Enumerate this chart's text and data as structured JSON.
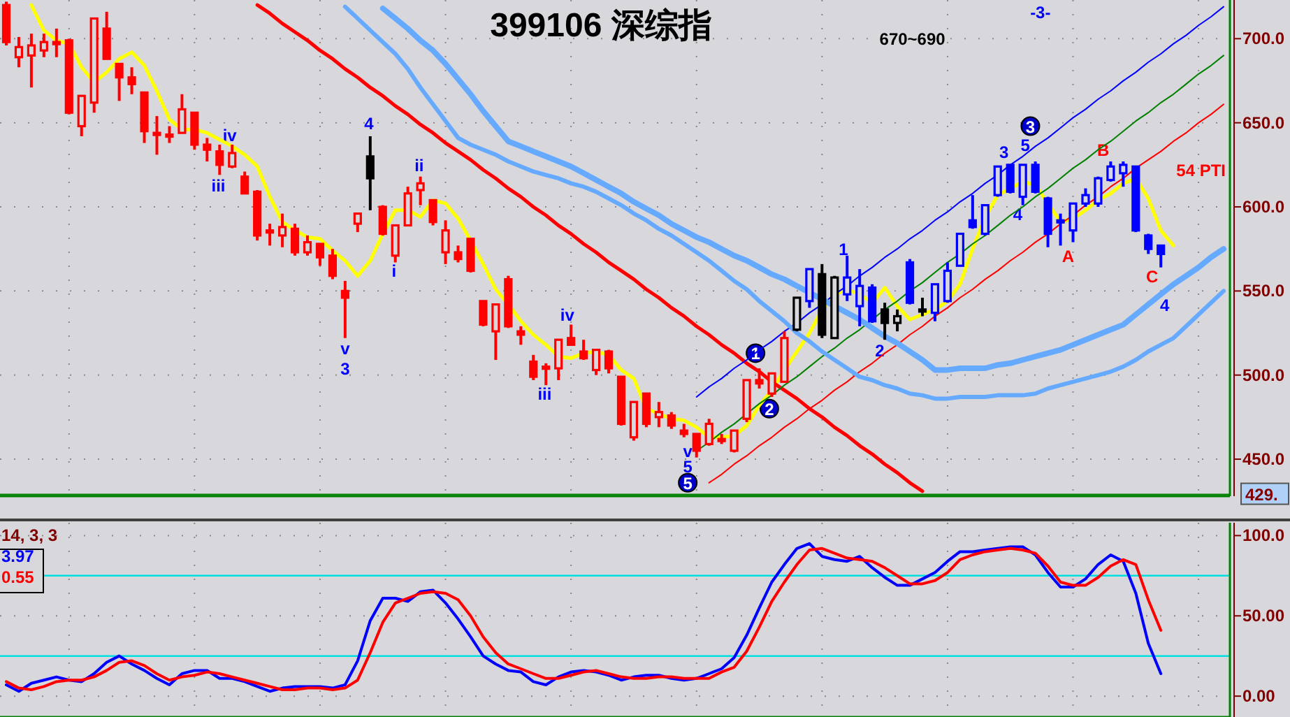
{
  "chart_data": [
    {
      "type": "candlestick",
      "title": "399106 深综指",
      "tick_labels": "y",
      "grid": true,
      "categories": [
        null,
        null,
        null,
        null,
        null,
        null,
        null,
        null,
        null,
        null,
        null,
        null,
        null,
        null,
        null,
        null,
        null,
        null,
        null,
        null,
        null,
        null,
        null,
        null,
        null,
        null,
        null,
        null,
        null,
        null,
        null,
        null,
        null,
        null,
        null,
        null,
        null,
        null,
        null,
        null,
        null,
        null,
        null,
        null,
        null,
        null,
        null,
        null,
        null,
        null,
        null,
        null,
        null,
        null,
        null,
        null,
        null,
        null,
        null,
        null,
        null,
        null,
        null,
        null,
        null,
        null,
        null,
        null,
        null,
        null,
        null,
        null,
        null,
        null,
        null,
        null,
        null,
        null,
        null,
        null,
        null,
        null,
        null,
        null,
        null,
        null,
        null,
        null,
        null,
        null,
        null,
        null,
        null,
        null,
        null,
        null,
        null,
        null
      ],
      "ohlc": [
        [
          720,
          722,
          696,
          698
        ],
        [
          689,
          701,
          683,
          695
        ],
        [
          690,
          703,
          671,
          696
        ],
        [
          693,
          703,
          689,
          698
        ],
        [
          698,
          706,
          689,
          697
        ],
        [
          699,
          700,
          655,
          656
        ],
        [
          648,
          666,
          642,
          666
        ],
        [
          662,
          712,
          656,
          712
        ],
        [
          706,
          716,
          688,
          688
        ],
        [
          685,
          685,
          663,
          677
        ],
        [
          677,
          683,
          667,
          673
        ],
        [
          668,
          668,
          638,
          645
        ],
        [
          644,
          654,
          631,
          643
        ],
        [
          643,
          648,
          638,
          642
        ],
        [
          644,
          667,
          644,
          658
        ],
        [
          656,
          656,
          634,
          637
        ],
        [
          637,
          641,
          627,
          634
        ],
        [
          633,
          637,
          619,
          625
        ],
        [
          624,
          637,
          623,
          632
        ],
        [
          618,
          621,
          608,
          608
        ],
        [
          609,
          610,
          580,
          583
        ],
        [
          586,
          590,
          577,
          585
        ],
        [
          583,
          596,
          576,
          588
        ],
        [
          587,
          590,
          571,
          573
        ],
        [
          573,
          583,
          571,
          579
        ],
        [
          578,
          578,
          565,
          570
        ],
        [
          571,
          575,
          557,
          559
        ],
        [
          550,
          556,
          522,
          546
        ],
        [
          590,
          596,
          585,
          596
        ],
        [
          630,
          642,
          598,
          617
        ],
        [
          600,
          601,
          583,
          584
        ],
        [
          571,
          589,
          567,
          589
        ],
        [
          589,
          612,
          589,
          608
        ],
        [
          610,
          618,
          601,
          614
        ],
        [
          604,
          604,
          589,
          591
        ],
        [
          573,
          592,
          566,
          586
        ],
        [
          573,
          577,
          567,
          569
        ],
        [
          581,
          581,
          561,
          562
        ],
        [
          544,
          544,
          529,
          530
        ],
        [
          526,
          542,
          509,
          542
        ],
        [
          557,
          559,
          528,
          529
        ],
        [
          526,
          529,
          518,
          524
        ],
        [
          508,
          512,
          497,
          499
        ],
        [
          505,
          507,
          494,
          504
        ],
        [
          504,
          521,
          497,
          521
        ],
        [
          522,
          530,
          518,
          518
        ],
        [
          514,
          521,
          509,
          510
        ],
        [
          503,
          515,
          500,
          515
        ],
        [
          514,
          515,
          501,
          504
        ],
        [
          499,
          499,
          470,
          471
        ],
        [
          463,
          484,
          461,
          484
        ],
        [
          489,
          489,
          469,
          471
        ],
        [
          475,
          484,
          469,
          478
        ],
        [
          476,
          478,
          468,
          470
        ],
        [
          467,
          471,
          463,
          465
        ],
        [
          465,
          465,
          451,
          455
        ],
        [
          459,
          474,
          458,
          471
        ],
        [
          462,
          465,
          459,
          461
        ],
        [
          455,
          467,
          454,
          467
        ],
        [
          474,
          497,
          472,
          497
        ],
        [
          497,
          504,
          492,
          495
        ],
        [
          489,
          501,
          487,
          501
        ],
        [
          496,
          526,
          496,
          522
        ],
        [
          527,
          546,
          526,
          546
        ],
        [
          544,
          563,
          540,
          563
        ],
        [
          560,
          566,
          522,
          524
        ],
        [
          522,
          559,
          522,
          558
        ],
        [
          548,
          571,
          544,
          558
        ],
        [
          541,
          563,
          529,
          553
        ],
        [
          552,
          554,
          531,
          532
        ],
        [
          539,
          543,
          521,
          531
        ],
        [
          531,
          539,
          526,
          535
        ],
        [
          567,
          569,
          542,
          543
        ],
        [
          539,
          546,
          535,
          538
        ],
        [
          537,
          554,
          532,
          554
        ],
        [
          544,
          567,
          543,
          562
        ],
        [
          565,
          584,
          565,
          584
        ],
        [
          592,
          607,
          587,
          588
        ],
        [
          584,
          601,
          583,
          601
        ],
        [
          607,
          624,
          606,
          624
        ],
        [
          625,
          625,
          608,
          609
        ],
        [
          606,
          625,
          601,
          625
        ],
        [
          625,
          627,
          608,
          609
        ],
        [
          605,
          606,
          576,
          584
        ],
        [
          592,
          596,
          577,
          591
        ],
        [
          586,
          602,
          579,
          602
        ],
        [
          602,
          611,
          600,
          607
        ],
        [
          602,
          618,
          600,
          617
        ],
        [
          616,
          627,
          615,
          624
        ],
        [
          620,
          627,
          612,
          625
        ],
        [
          624,
          624,
          585,
          586
        ],
        [
          583,
          584,
          572,
          575
        ],
        [
          577,
          577,
          564,
          572
        ],
        null,
        null,
        null,
        null,
        null
      ],
      "colors": [
        "#ff0000",
        "#ff0000",
        "#ff0000",
        "#ff0000",
        "#ff0000",
        "#ff0000",
        "#ff0000",
        "#ff0000",
        "#ff0000",
        "#ff0000",
        "#ff0000",
        "#ff0000",
        "#ff0000",
        "#ff0000",
        "#ff0000",
        "#ff0000",
        "#ff0000",
        "#ff0000",
        "#ff0000",
        "#ff0000",
        "#ff0000",
        "#ff0000",
        "#ff0000",
        "#ff0000",
        "#ff0000",
        "#ff0000",
        "#ff0000",
        "#ff0000",
        "#ff0000",
        "#000000",
        "#ff0000",
        "#ff0000",
        "#ff0000",
        "#ff0000",
        "#ff0000",
        "#ff0000",
        "#ff0000",
        "#ff0000",
        "#ff0000",
        "#ff0000",
        "#ff0000",
        "#ff0000",
        "#ff0000",
        "#ff0000",
        "#ff0000",
        "#ff0000",
        "#ff0000",
        "#ff0000",
        "#ff0000",
        "#ff0000",
        "#ff0000",
        "#ff0000",
        "#ff0000",
        "#ff0000",
        "#ff0000",
        "#ff0000",
        "#ff0000",
        "#ff0000",
        "#ff0000",
        "#ff0000",
        "#ff0000",
        "#ff0000",
        "#ff0000",
        "#000000",
        "#0000ff",
        "#000000",
        "#000000",
        "#0000ff",
        "#0000ff",
        "#0000ff",
        "#000000",
        "#000000",
        "#0000ff",
        "#000000",
        "#0000ff",
        "#0000ff",
        "#0000ff",
        "#0000ff",
        "#0000ff",
        "#0000ff",
        "#0000ff",
        "#0000ff",
        "#0000ff",
        "#0000ff",
        "#0000ff",
        "#0000ff",
        "#0000ff",
        "#0000ff",
        "#0000ff",
        "#0000ff",
        "#0000ff",
        "#0000ff",
        "#0000ff",
        null,
        null,
        null,
        null,
        null
      ],
      "series": [
        {
          "type": "line",
          "color": "#ffff00",
          "values": [
            null,
            null,
            720,
            705,
            699,
            697,
            683,
            674,
            680,
            688,
            692,
            684,
            669,
            652,
            646,
            646,
            644,
            640,
            636,
            631,
            624,
            606,
            591,
            586,
            582,
            581,
            574,
            568,
            559,
            568,
            584,
            598,
            598,
            594,
            604,
            602,
            593,
            580,
            566,
            551,
            542,
            532,
            524,
            518,
            511,
            510,
            513,
            514,
            512,
            503,
            498,
            480,
            477,
            474,
            473,
            469,
            463,
            463,
            464,
            470,
            482,
            491,
            503,
            514,
            525,
            539,
            548,
            551,
            548,
            543,
            552,
            541,
            533,
            536,
            539,
            544,
            554,
            575,
            594,
            607,
            611,
            615,
            613,
            602,
            591,
            593,
            598,
            604,
            608,
            614,
            617,
            605,
            586,
            577,
            null,
            null,
            null,
            null
          ]
        },
        {
          "type": "line",
          "color": "#ff0000",
          "values": [
            null,
            null,
            null,
            null,
            null,
            null,
            null,
            null,
            null,
            null,
            null,
            null,
            null,
            null,
            null,
            null,
            null,
            null,
            null,
            null,
            720,
            715,
            709,
            704,
            699,
            693,
            688,
            682,
            677,
            671,
            666,
            660,
            655,
            649,
            644,
            638,
            633,
            628,
            622,
            617,
            611,
            606,
            600,
            595,
            589,
            584,
            578,
            573,
            567,
            562,
            557,
            551,
            546,
            540,
            535,
            529,
            524,
            518,
            513,
            507,
            502,
            496,
            491,
            486,
            480,
            475,
            469,
            464,
            458,
            453,
            447,
            442,
            436,
            431,
            null,
            null,
            null,
            null,
            null,
            null,
            null,
            null,
            null,
            null,
            null,
            null,
            null,
            null,
            null,
            null,
            null,
            null,
            null,
            null,
            null,
            null,
            null,
            null
          ]
        },
        {
          "type": "line",
          "color": "#0000ff",
          "values": [
            null,
            null,
            null,
            null,
            null,
            null,
            null,
            null,
            null,
            null,
            null,
            null,
            null,
            null,
            null,
            null,
            null,
            null,
            null,
            null,
            null,
            null,
            null,
            null,
            null,
            null,
            null,
            null,
            null,
            null,
            null,
            null,
            null,
            null,
            null,
            null,
            null,
            null,
            null,
            null,
            null,
            null,
            null,
            null,
            null,
            null,
            null,
            null,
            null,
            null,
            null,
            null,
            null,
            null,
            null,
            487,
            493,
            498,
            504,
            509,
            515,
            520,
            526,
            531,
            537,
            542,
            548,
            553,
            559,
            564,
            570,
            575,
            581,
            586,
            592,
            597,
            603,
            608,
            614,
            619,
            625,
            630,
            636,
            641,
            647,
            653,
            658,
            664,
            669,
            675,
            680,
            686,
            691,
            697,
            702,
            708,
            713,
            719
          ]
        },
        {
          "type": "line",
          "color": "#008000",
          "values": [
            null,
            null,
            null,
            null,
            null,
            null,
            null,
            null,
            null,
            null,
            null,
            null,
            null,
            null,
            null,
            null,
            null,
            null,
            null,
            null,
            null,
            null,
            null,
            null,
            null,
            null,
            null,
            null,
            null,
            null,
            null,
            null,
            null,
            null,
            null,
            null,
            null,
            null,
            null,
            null,
            null,
            null,
            null,
            null,
            null,
            null,
            null,
            null,
            null,
            null,
            null,
            null,
            null,
            null,
            null,
            455,
            460,
            466,
            471,
            477,
            483,
            488,
            494,
            499,
            505,
            511,
            516,
            522,
            527,
            533,
            539,
            544,
            550,
            555,
            561,
            567,
            572,
            578,
            583,
            589,
            595,
            600,
            606,
            611,
            617,
            623,
            628,
            634,
            639,
            645,
            651,
            656,
            662,
            667,
            673,
            679,
            684,
            690
          ]
        },
        {
          "type": "line",
          "color": "#ff0000",
          "values": [
            null,
            null,
            null,
            null,
            null,
            null,
            null,
            null,
            null,
            null,
            null,
            null,
            null,
            null,
            null,
            null,
            null,
            null,
            null,
            null,
            null,
            null,
            null,
            null,
            null,
            null,
            null,
            null,
            null,
            null,
            null,
            null,
            null,
            null,
            null,
            null,
            null,
            null,
            null,
            null,
            null,
            null,
            null,
            null,
            null,
            null,
            null,
            null,
            null,
            null,
            null,
            null,
            null,
            null,
            null,
            null,
            436,
            441,
            447,
            452,
            458,
            463,
            469,
            474,
            480,
            485,
            491,
            496,
            502,
            507,
            513,
            518,
            524,
            529,
            535,
            540,
            546,
            551,
            557,
            562,
            568,
            573,
            579,
            584,
            590,
            595,
            601,
            606,
            612,
            617,
            623,
            628,
            633,
            639,
            644,
            650,
            655,
            661
          ]
        },
        {
          "type": "line",
          "color": "#66aaff",
          "values": [
            null,
            null,
            null,
            null,
            null,
            null,
            null,
            null,
            null,
            null,
            null,
            null,
            null,
            null,
            null,
            null,
            null,
            null,
            null,
            null,
            null,
            null,
            null,
            null,
            null,
            null,
            null,
            null,
            null,
            null,
            718,
            712,
            706,
            699,
            693,
            685,
            676,
            667,
            657,
            648,
            639,
            636,
            633,
            630,
            627,
            624,
            620,
            616,
            612,
            608,
            603,
            599,
            595,
            590,
            586,
            582,
            579,
            575,
            571,
            568,
            564,
            560,
            557,
            553,
            549,
            545,
            541,
            537,
            533,
            528,
            523,
            519,
            514,
            509,
            503,
            503,
            504,
            504,
            504,
            506,
            507,
            509,
            511,
            513,
            515,
            518,
            521,
            524,
            527,
            530,
            536,
            542,
            548,
            554,
            559,
            564,
            570,
            575
          ]
        },
        {
          "type": "line",
          "color": "#66aaff",
          "values": [
            null,
            null,
            null,
            null,
            null,
            null,
            null,
            null,
            null,
            null,
            null,
            null,
            null,
            null,
            null,
            null,
            null,
            null,
            null,
            null,
            null,
            null,
            null,
            null,
            null,
            null,
            null,
            719,
            712,
            705,
            698,
            691,
            682,
            671,
            661,
            651,
            641,
            637,
            634,
            631,
            627,
            624,
            621,
            619,
            617,
            614,
            612,
            609,
            605,
            601,
            596,
            592,
            587,
            583,
            578,
            573,
            568,
            562,
            556,
            551,
            544,
            538,
            532,
            525,
            520,
            514,
            509,
            504,
            499,
            497,
            494,
            492,
            489,
            488,
            486,
            486,
            487,
            487,
            487,
            488,
            488,
            488,
            489,
            492,
            494,
            496,
            498,
            500,
            502,
            505,
            509,
            514,
            518,
            522,
            529,
            536,
            543,
            550
          ]
        }
      ],
      "ylim": [
        428,
        723
      ],
      "yticks": [
        {
          "value": 450,
          "label": "450.0"
        },
        {
          "value": 500,
          "label": "500.0"
        },
        {
          "value": 550,
          "label": "550.0"
        },
        {
          "value": 600,
          "label": "600.0"
        },
        {
          "value": 650,
          "label": "650.0"
        },
        {
          "value": 700,
          "label": "700.0"
        }
      ],
      "ref_lines": [
        {
          "axis": "y",
          "value": 429,
          "label": "429.",
          "color": "#008000"
        }
      ],
      "annotations": [
        "4",
        "ii",
        "i",
        "iii",
        "iv",
        "v",
        "3",
        "iv",
        "iii",
        "v",
        "5",
        "5",
        "1",
        "2",
        "1",
        "2",
        "3",
        "5",
        "3",
        "4",
        "A",
        "B",
        "C",
        "4",
        "54 PTI",
        "670~690",
        "-3-"
      ]
    },
    {
      "type": "line",
      "tick_labels": "y",
      "grid": true,
      "categories": [
        null,
        null,
        null,
        null,
        null,
        null,
        null,
        null,
        null,
        null,
        null,
        null,
        null,
        null,
        null,
        null,
        null,
        null,
        null,
        null,
        null,
        null,
        null,
        null,
        null,
        null,
        null,
        null,
        null,
        null,
        null,
        null,
        null,
        null,
        null,
        null,
        null,
        null,
        null,
        null,
        null,
        null,
        null,
        null,
        null,
        null,
        null,
        null,
        null,
        null,
        null,
        null,
        null,
        null,
        null,
        null,
        null,
        null,
        null,
        null,
        null,
        null,
        null,
        null,
        null,
        null,
        null,
        null,
        null,
        null,
        null,
        null,
        null,
        null,
        null,
        null,
        null,
        null,
        null,
        null,
        null,
        null,
        null,
        null,
        null,
        null,
        null,
        null,
        null,
        null,
        null,
        null,
        null,
        null,
        null,
        null,
        null,
        null
      ],
      "series": [
        {
          "color": "#0000ff",
          "values": [
            7,
            3,
            8,
            10,
            12,
            10,
            9,
            14,
            21,
            25,
            20,
            16,
            11,
            7,
            14,
            16,
            16,
            11,
            11,
            9,
            6,
            3,
            5,
            6,
            6,
            6,
            5,
            7,
            22,
            47,
            61,
            61,
            59,
            65,
            66,
            58,
            48,
            37,
            25,
            20,
            16,
            15,
            9,
            7,
            12,
            15,
            16,
            15,
            13,
            10,
            12,
            13,
            13,
            11,
            10,
            11,
            14,
            17,
            24,
            38,
            55,
            71,
            82,
            92,
            95,
            87,
            85,
            84,
            87,
            80,
            74,
            69,
            69,
            73,
            77,
            84,
            90,
            90,
            91,
            92,
            93,
            93,
            88,
            77,
            68,
            68,
            73,
            82,
            88,
            84,
            64,
            33,
            14,
            null,
            null,
            null,
            null,
            null
          ]
        },
        {
          "color": "#ff0000",
          "values": [
            9,
            5,
            4,
            6,
            9,
            10,
            10,
            12,
            16,
            21,
            22,
            19,
            14,
            10,
            12,
            13,
            15,
            14,
            12,
            10,
            8,
            6,
            4,
            4,
            5,
            5,
            4,
            5,
            10,
            27,
            46,
            58,
            61,
            64,
            65,
            64,
            60,
            50,
            37,
            27,
            20,
            17,
            14,
            11,
            11,
            13,
            15,
            16,
            14,
            12,
            11,
            11,
            12,
            12,
            11,
            11,
            11,
            15,
            18,
            28,
            43,
            59,
            71,
            82,
            91,
            92,
            89,
            86,
            85,
            84,
            80,
            75,
            70,
            70,
            72,
            77,
            85,
            88,
            90,
            91,
            92,
            91,
            89,
            81,
            71,
            69,
            69,
            74,
            81,
            85,
            82,
            60,
            41,
            null,
            null,
            null,
            null,
            null
          ]
        }
      ],
      "ylim": [
        -13,
        108
      ],
      "yticks": [
        {
          "value": 0,
          "label": "0.00"
        },
        {
          "value": 50,
          "label": "50.00"
        },
        {
          "value": 100,
          "label": "100.0"
        }
      ],
      "ref_lines": [
        {
          "axis": "y",
          "value": 75,
          "color": "#00e0e0"
        },
        {
          "axis": "y",
          "value": 25,
          "color": "#00e0e0"
        }
      ],
      "annotations": [
        "14, 3, 3",
        "3.97",
        "0.55"
      ]
    }
  ]
}
